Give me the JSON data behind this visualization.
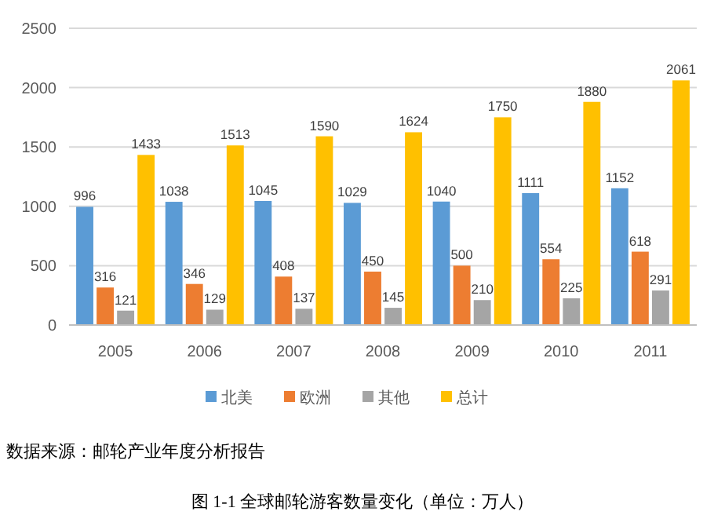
{
  "chart_data": {
    "type": "bar",
    "title": "图 1-1 全球邮轮游客数量变化（单位：万人）",
    "annotations": [
      "数据来源：邮轮产业年度分析报告"
    ],
    "categories": [
      "2005",
      "2006",
      "2007",
      "2008",
      "2009",
      "2010",
      "2011"
    ],
    "series": [
      {
        "name": "北美",
        "color": "#5b9bd5",
        "values": [
          996,
          1038,
          1045,
          1029,
          1040,
          1111,
          1152
        ]
      },
      {
        "name": "欧洲",
        "color": "#ed7d31",
        "values": [
          316,
          346,
          408,
          450,
          500,
          554,
          618
        ]
      },
      {
        "name": "其他",
        "color": "#a5a5a5",
        "values": [
          121,
          129,
          137,
          145,
          210,
          225,
          291
        ]
      },
      {
        "name": "总计",
        "color": "#ffc000",
        "values": [
          1433,
          1513,
          1590,
          1624,
          1750,
          1880,
          2061
        ]
      }
    ],
    "ylim": [
      0,
      2500
    ],
    "yticks": [
      0,
      500,
      1000,
      1500,
      2000,
      2500
    ],
    "grid": "y",
    "legend": "bottom",
    "data_labels": true
  }
}
